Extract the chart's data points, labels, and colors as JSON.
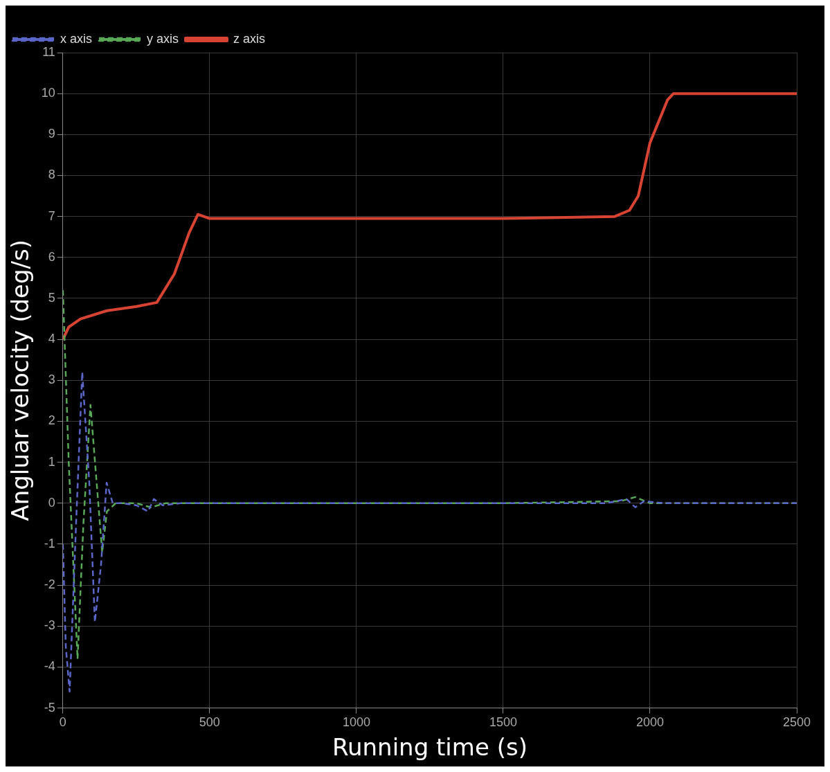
{
  "chart_data": {
    "type": "line",
    "xlabel": "Running time (s)",
    "ylabel": "Angluar velocity (deg/s)",
    "xlim": [
      0,
      2500
    ],
    "xticks": [
      0,
      500,
      1000,
      1500,
      2000,
      2500
    ],
    "ylim": [
      -5,
      11
    ],
    "yticks": [
      -5,
      -4,
      -3,
      -2,
      -1,
      0,
      1,
      2,
      3,
      4,
      5,
      6,
      7,
      8,
      9,
      10,
      11
    ],
    "grid": true,
    "legend": "top left",
    "marker": "none",
    "series": [
      {
        "name": "x axis",
        "color": "#5a66c8",
        "line_style": "dashed",
        "x": [
          0,
          10,
          23,
          45,
          66,
          90,
          109,
          130,
          149,
          170,
          200,
          250,
          290,
          310,
          340,
          400,
          500,
          700,
          1000,
          1500,
          1850,
          1920,
          1950,
          1980,
          2050,
          2500
        ],
        "values": [
          -1,
          -3.5,
          -4.6,
          -0.5,
          3.2,
          0.5,
          -2.9,
          -1.5,
          0.5,
          0,
          0,
          -0.05,
          -0.2,
          0.1,
          -0.05,
          0,
          0,
          0,
          0,
          0,
          0,
          0.1,
          -0.1,
          0.05,
          0,
          0
        ]
      },
      {
        "name": "y axis",
        "color": "#58a858",
        "line_style": "dashed",
        "x": [
          0,
          20,
          50,
          70,
          94,
          115,
          134,
          150,
          180,
          250,
          300,
          350,
          500,
          1000,
          1500,
          1900,
          1950,
          2000,
          2500
        ],
        "values": [
          5.2,
          1,
          -3.8,
          -0.5,
          2.4,
          0.5,
          -1.2,
          -0.2,
          0,
          0,
          -0.1,
          0,
          0,
          0,
          0,
          0.05,
          0.15,
          0,
          0
        ]
      },
      {
        "name": "z axis",
        "color": "#d84434",
        "line_style": "solid",
        "x": [
          0,
          20,
          60,
          150,
          250,
          320,
          380,
          430,
          460,
          500,
          1000,
          1500,
          1880,
          1930,
          1960,
          2000,
          2060,
          2080,
          2500
        ],
        "values": [
          4.0,
          4.3,
          4.5,
          4.7,
          4.8,
          4.9,
          5.6,
          6.6,
          7.05,
          6.95,
          6.95,
          6.95,
          7.0,
          7.15,
          7.5,
          8.8,
          9.85,
          10,
          10
        ]
      }
    ]
  }
}
